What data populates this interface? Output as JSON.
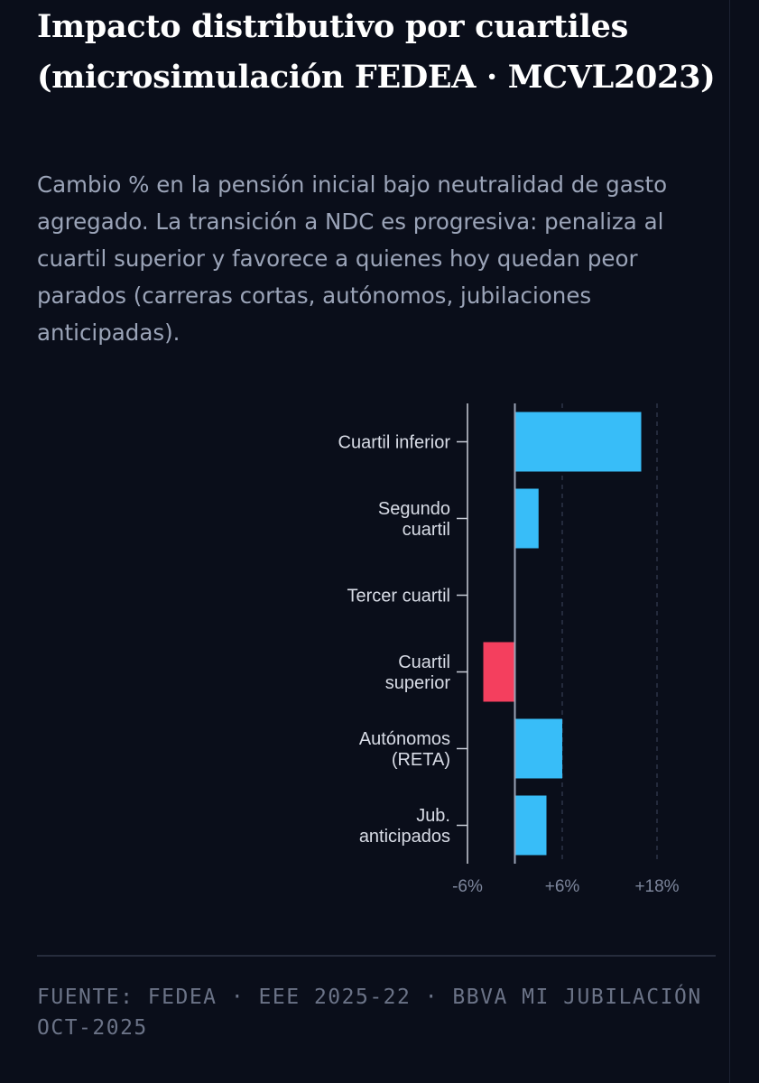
{
  "header": {
    "title": "Impacto distributivo por cuartiles (microsimulación FEDEA · MCVL2023)",
    "subtitle": "Cambio % en la pensión inicial bajo neutralidad de gasto agregado. La transición a NDC es progresiva: penaliza al cuartil superior y favorece a quienes hoy quedan peor parados (carreras cortas, autónomos, jubilaciones anticipadas)."
  },
  "chart_data": {
    "type": "bar",
    "orientation": "horizontal",
    "categories": [
      [
        "Cuartil inferior"
      ],
      [
        "Segundo",
        "cuartil"
      ],
      [
        "Tercer cuartil"
      ],
      [
        "Cuartil",
        "superior"
      ],
      [
        "Autónomos",
        "(RETA)"
      ],
      [
        "Jub.",
        "anticipados"
      ]
    ],
    "values": [
      16,
      3,
      0,
      -4,
      6,
      4
    ],
    "xlim": [
      -6,
      18
    ],
    "xticks": [
      -6,
      6,
      18
    ],
    "xtick_labels": [
      "-6%",
      "+6%",
      "+18%"
    ],
    "grid": "dashed vertical at tick values",
    "colors": {
      "positive": "#38bdf8",
      "negative": "#f43f5e"
    }
  },
  "footer": {
    "source": "FUENTE: FEDEA · EEE 2025-22 · BBVA MI JUBILACIÓN OCT-2025"
  }
}
